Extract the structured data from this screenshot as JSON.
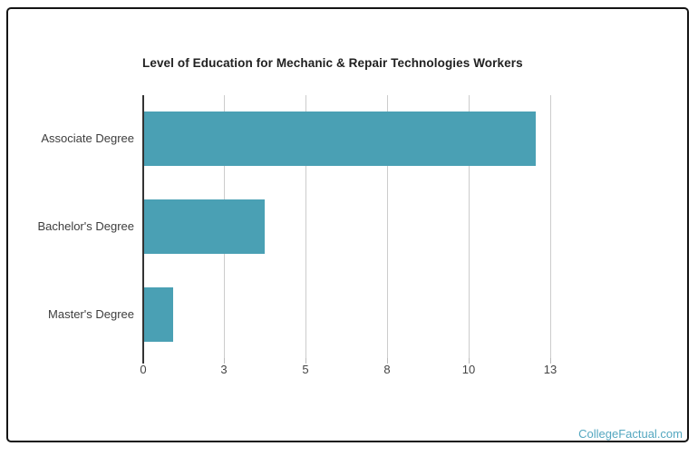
{
  "page": {
    "background_color": "#ffffff",
    "frame_border_color": "#141414"
  },
  "chart_data": {
    "type": "bar",
    "orientation": "horizontal",
    "title": "Level of Education for Mechanic & Repair Technologies Workers",
    "categories": [
      "Associate Degree",
      "Bachelor's Degree",
      "Master's Degree"
    ],
    "values": [
      12,
      3.7,
      0.9
    ],
    "x_ticks": [
      {
        "label": "0",
        "value": 0
      },
      {
        "label": "3",
        "value": 2.5
      },
      {
        "label": "5",
        "value": 5
      },
      {
        "label": "8",
        "value": 7.5
      },
      {
        "label": "10",
        "value": 10
      },
      {
        "label": "13",
        "value": 12.5
      }
    ],
    "xlim": [
      0,
      15
    ],
    "xlabel": "",
    "ylabel": "",
    "grid": true,
    "legend": "none",
    "bar_color": "#4AA0B4",
    "gridline_color": "#cccccc",
    "axis_color": "#333333",
    "title_color": "#212121",
    "label_color": "#3d3d3d",
    "tick_label_color": "#444444"
  },
  "watermark": {
    "text": "CollegeFactual.com",
    "color": "#54a7c0"
  }
}
